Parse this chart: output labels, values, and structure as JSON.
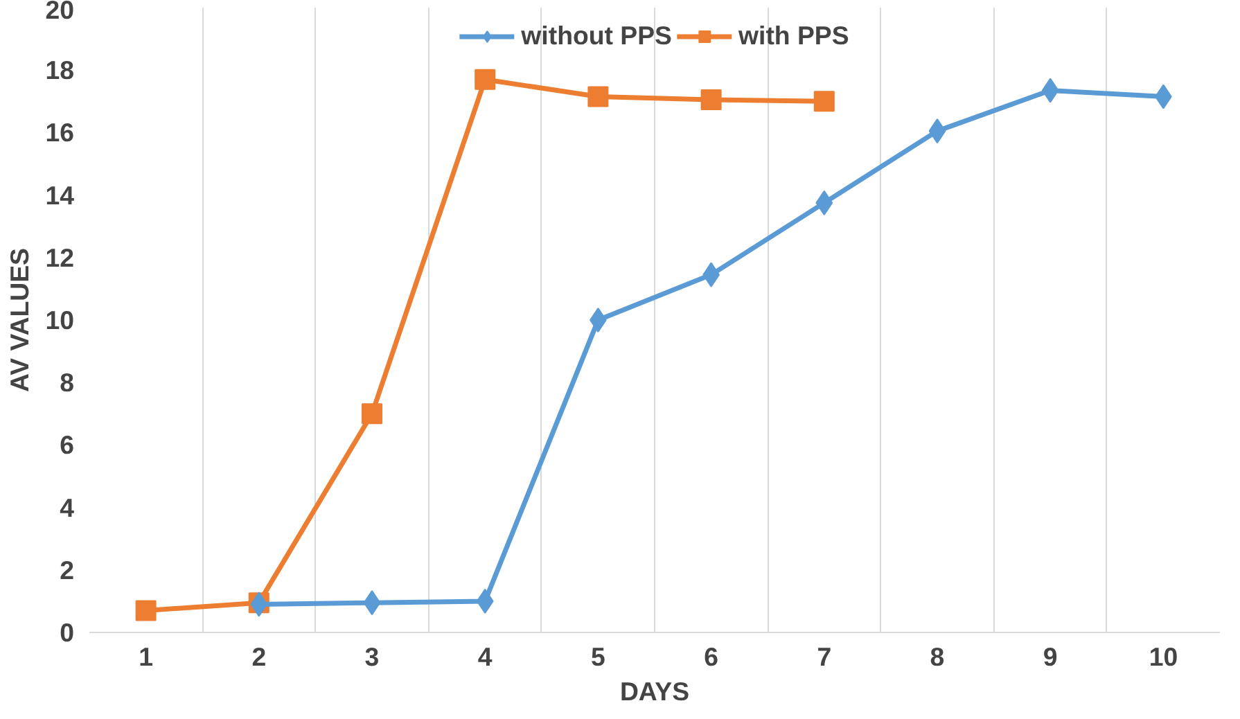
{
  "chart_data": {
    "type": "line",
    "xlabel": "DAYS",
    "ylabel": "AV VALUES",
    "categories": [
      "1",
      "2",
      "3",
      "4",
      "5",
      "6",
      "7",
      "8",
      "9",
      "10"
    ],
    "series": [
      {
        "name": "without PPS",
        "color": "#5b9bd5",
        "marker": "diamond",
        "values": [
          null,
          0.9,
          0.95,
          1.0,
          10.0,
          11.45,
          13.75,
          16.05,
          17.35,
          17.15
        ]
      },
      {
        "name": "with PPS",
        "color": "#ed7d31",
        "marker": "square",
        "values": [
          0.7,
          0.95,
          7.0,
          17.7,
          17.15,
          17.05,
          17.0,
          null,
          null,
          null
        ]
      }
    ],
    "ylim": [
      0,
      20
    ],
    "yticks": [
      0,
      2,
      4,
      6,
      8,
      10,
      12,
      14,
      16,
      18,
      20
    ],
    "grid": "x",
    "legend": "top",
    "line_style": "solid"
  }
}
